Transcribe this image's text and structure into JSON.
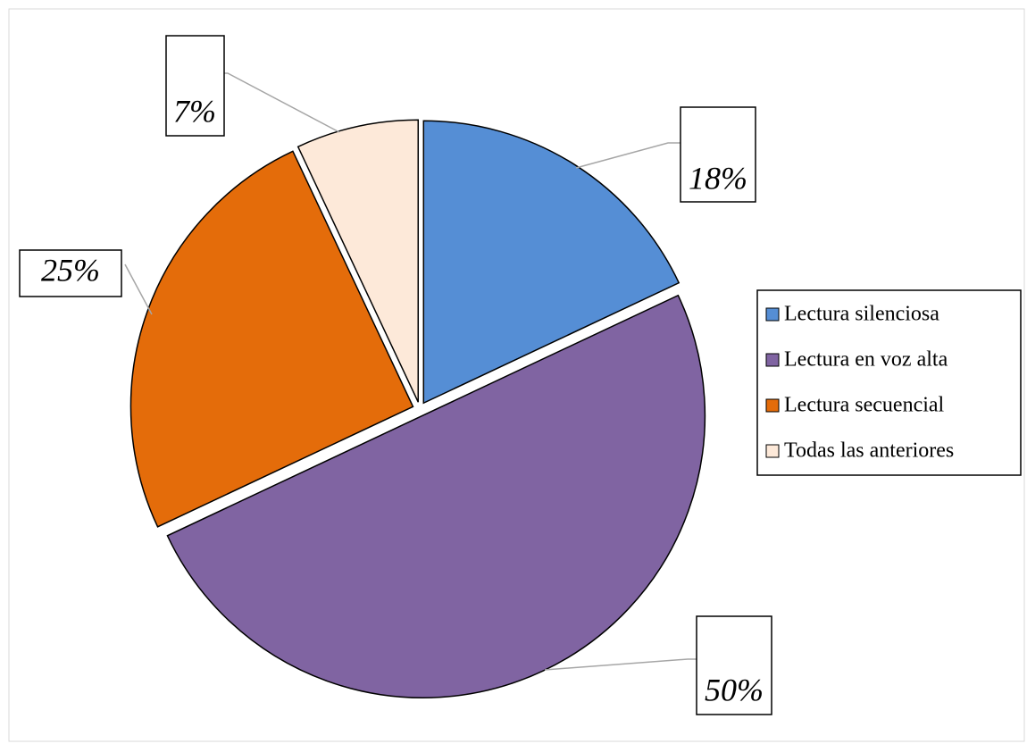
{
  "chart_data": {
    "type": "pie",
    "categories": [
      "Lectura silenciosa",
      "Lectura en voz alta",
      "Lectura secuencial",
      "Todas las anteriores"
    ],
    "values": [
      18,
      50,
      25,
      7
    ],
    "value_labels": [
      "18%",
      "50%",
      "25%",
      "7%"
    ],
    "colors": [
      "#558ed5",
      "#8064a2",
      "#e46c0a",
      "#fde9d9"
    ],
    "legend": "right"
  }
}
